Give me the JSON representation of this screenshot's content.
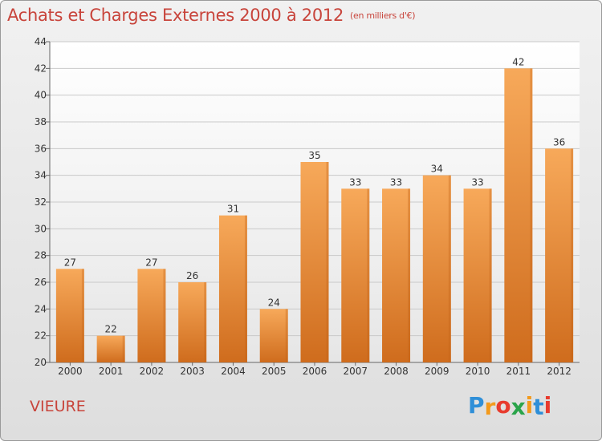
{
  "chart_data": {
    "type": "bar",
    "title": "Achats et Charges Externes 2000 à 2012",
    "subtitle": "(en milliers d'€)",
    "categories": [
      "2000",
      "2001",
      "2002",
      "2003",
      "2004",
      "2005",
      "2006",
      "2007",
      "2008",
      "2009",
      "2010",
      "2011",
      "2012"
    ],
    "values": [
      27,
      22,
      27,
      26,
      31,
      24,
      35,
      33,
      33,
      34,
      33,
      42,
      36
    ],
    "ylim": [
      20,
      44
    ],
    "yticks": [
      20,
      22,
      24,
      26,
      28,
      30,
      32,
      34,
      36,
      38,
      40,
      42,
      44
    ],
    "grid": true,
    "xlabel": "",
    "ylabel": "",
    "bar_color": "#f0913c",
    "bar_color_light": "#f7a95a",
    "bar_color_dark": "#cf6c1d"
  },
  "commune": "VIEURE",
  "logo": {
    "letters": [
      "P",
      "r",
      "o",
      "x",
      "i",
      "t",
      "i"
    ],
    "colors": [
      "#2f8fd8",
      "#f39a1c",
      "#e83b2e",
      "#2aa44a",
      "#f39a1c",
      "#2f8fd8",
      "#e83b2e"
    ]
  }
}
